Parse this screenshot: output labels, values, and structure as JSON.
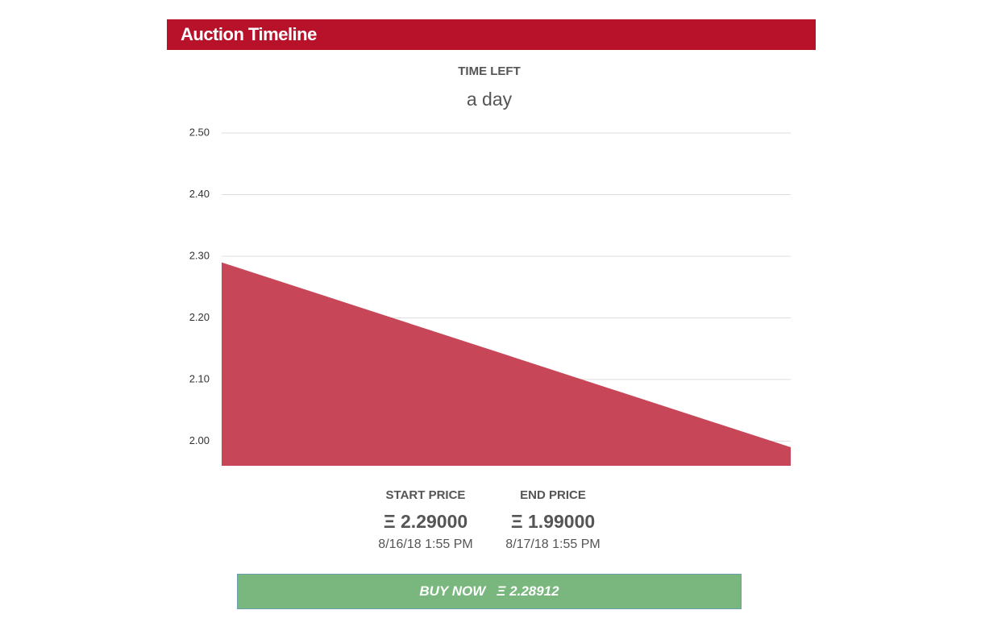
{
  "header": {
    "title": "Auction Timeline"
  },
  "time_left": {
    "label": "TIME LEFT",
    "value": "a day"
  },
  "chart_data": {
    "type": "area",
    "categories": [
      null,
      null
    ],
    "values": [
      2.29,
      1.99
    ],
    "color": "#c43c4e",
    "ylim": [
      1.96,
      2.5
    ],
    "yticks": [
      {
        "value": 2,
        "label": "2.00"
      },
      {
        "value": 2.1,
        "label": "2.10"
      },
      {
        "value": 2.2,
        "label": "2.20"
      },
      {
        "value": 2.3,
        "label": "2.30"
      },
      {
        "value": 2.4,
        "label": "2.40"
      },
      {
        "value": 2.5,
        "label": "2.50"
      }
    ],
    "grid": true
  },
  "prices": {
    "start": {
      "label": "START PRICE",
      "price": "Ξ 2.29000",
      "date": "8/16/18 1:55 PM"
    },
    "end": {
      "label": "END PRICE",
      "price": "Ξ 1.99000",
      "date": "8/17/18 1:55 PM"
    }
  },
  "buy_button": {
    "label": "BUY NOW",
    "price": "Ξ 2.28912"
  }
}
